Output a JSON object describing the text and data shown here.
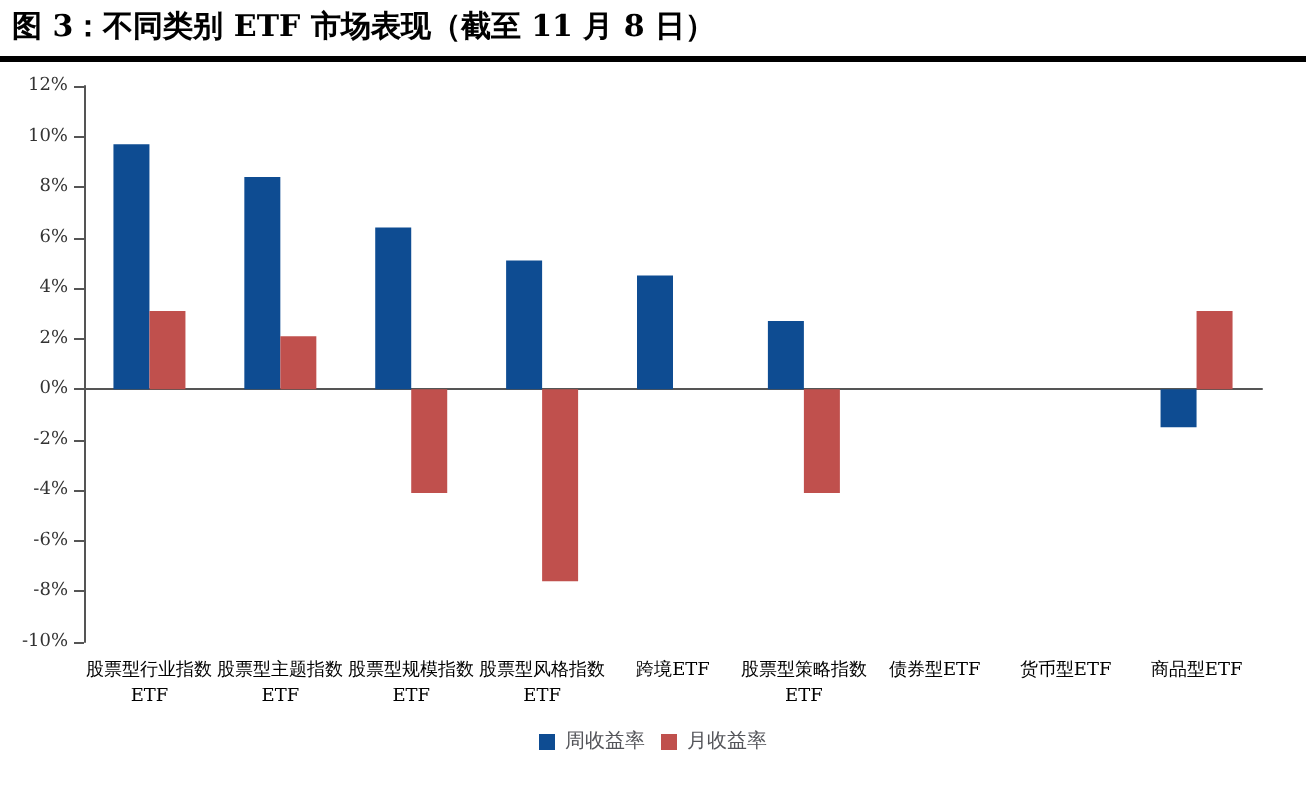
{
  "chart_data": {
    "type": "bar",
    "title": "图 3：不同类别 ETF 市场表现（截至 11 月 8 日）",
    "categories": [
      "股票型行业指数ETF",
      "股票型主题指数ETF",
      "股票型规模指数ETF",
      "股票型风格指数ETF",
      "跨境ETF",
      "股票型策略指数ETF",
      "债券型ETF",
      "货币型ETF",
      "商品型ETF"
    ],
    "series": [
      {
        "name": "周收益率",
        "color": "#0e4c92",
        "values": [
          9.7,
          8.4,
          6.4,
          5.1,
          4.5,
          2.7,
          null,
          null,
          -1.5
        ]
      },
      {
        "name": "月收益率",
        "color": "#c0504d",
        "values": [
          3.1,
          2.1,
          -4.1,
          -7.6,
          null,
          -4.1,
          null,
          null,
          3.1
        ]
      }
    ],
    "ylim": [
      -10,
      12
    ],
    "yticks": [
      {
        "value": -10,
        "label": "-10%"
      },
      {
        "value": -8,
        "label": "-8%"
      },
      {
        "value": -6,
        "label": "-6%"
      },
      {
        "value": -4,
        "label": "-4%"
      },
      {
        "value": -2,
        "label": "-2%"
      },
      {
        "value": 0,
        "label": "0%"
      },
      {
        "value": 2,
        "label": "2%"
      },
      {
        "value": 4,
        "label": "4%"
      },
      {
        "value": 6,
        "label": "6%"
      },
      {
        "value": 8,
        "label": "8%"
      },
      {
        "value": 10,
        "label": "10%"
      },
      {
        "value": 12,
        "label": "12%"
      }
    ],
    "legend": "bottom"
  }
}
